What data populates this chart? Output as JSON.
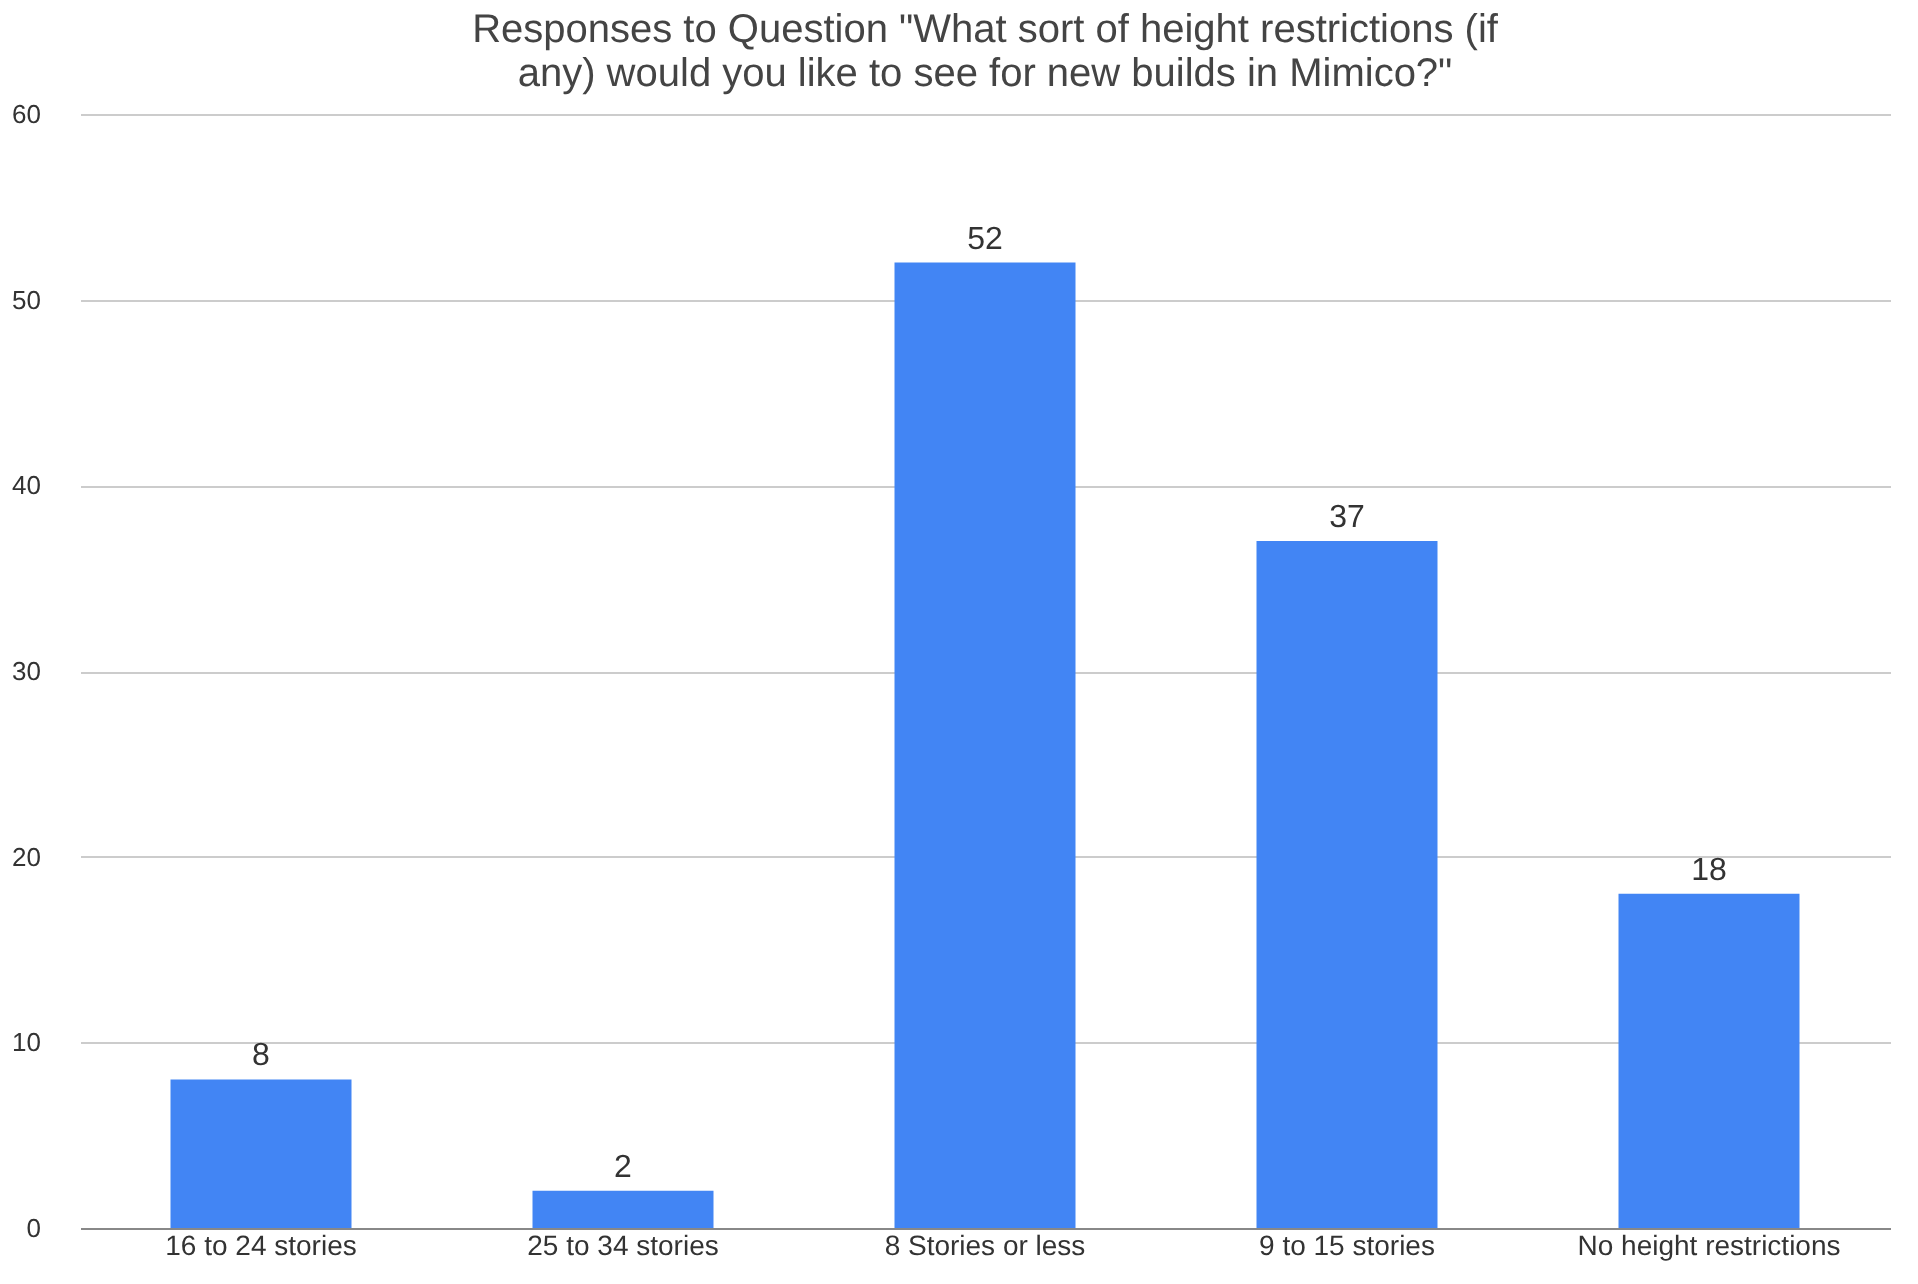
{
  "chart_data": {
    "type": "bar",
    "title": "Responses to Question \"What sort of height restrictions (if any) would you like to see for new builds in Mimico?\"",
    "categories": [
      "16 to 24 stories",
      "25 to 34 stories",
      "8 Stories or less",
      "9 to 15 stories",
      "No height restrictions"
    ],
    "values": [
      8,
      2,
      52,
      37,
      18
    ],
    "color": "#4285f4",
    "ylim": [
      0,
      60
    ],
    "yticks": [
      0,
      10,
      20,
      30,
      40,
      50,
      60
    ],
    "grid": "y",
    "data_labels": true
  }
}
